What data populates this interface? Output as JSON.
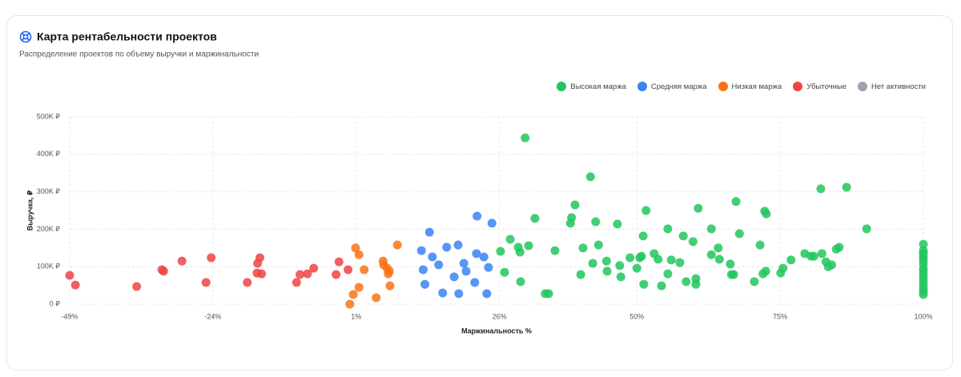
{
  "header": {
    "title": "Карта рентабельности проектов",
    "subtitle": "Распределение проектов по объему выручки и маржинальности"
  },
  "chart_data": {
    "type": "scatter",
    "x_label": "Маржинальность %",
    "y_label": "Выручка, ₽",
    "xlim": [
      -49,
      100
    ],
    "ylim": [
      0,
      500000
    ],
    "xticks": [
      {
        "value": -49,
        "label": "-49%"
      },
      {
        "value": -24,
        "label": "-24%"
      },
      {
        "value": 1,
        "label": "1%"
      },
      {
        "value": 26,
        "label": "26%"
      },
      {
        "value": 50,
        "label": "50%"
      },
      {
        "value": 75,
        "label": "75%"
      },
      {
        "value": 100,
        "label": "100%"
      }
    ],
    "yticks": [
      {
        "value": 0,
        "label": "0 ₽"
      },
      {
        "value": 100000,
        "label": "100K ₽"
      },
      {
        "value": 200000,
        "label": "200K ₽"
      },
      {
        "value": 300000,
        "label": "300K ₽"
      },
      {
        "value": 400000,
        "label": "400K ₽"
      },
      {
        "value": 500000,
        "label": "500K ₽"
      }
    ],
    "grid": true,
    "legend": "top-right",
    "series": [
      {
        "name": "Высокая маржа",
        "color": "#22c55e",
        "x": [
          26.2,
          26.9,
          27.9,
          29.3,
          29.6,
          29.7,
          30.5,
          31.1,
          32.2,
          34,
          34.6,
          35.7,
          38.4,
          38.6,
          39.2,
          40.2,
          40.6,
          41.9,
          42.3,
          42.8,
          43.3,
          44.7,
          44.8,
          46.6,
          47,
          47.2,
          48.8,
          50,
          50.5,
          50.8,
          51.1,
          51.2,
          51.6,
          53,
          53.7,
          54.3,
          55.4,
          55.4,
          56,
          57.5,
          58.1,
          58.6,
          59.8,
          60.3,
          60.3,
          60.7,
          63,
          63,
          64.2,
          64.4,
          66.3,
          66.5,
          66.9,
          67.3,
          67.9,
          70.5,
          71.5,
          72,
          72.3,
          72.6,
          72.5,
          75.1,
          75.5,
          76.9,
          79.3,
          80.4,
          80.9,
          82.3,
          82.1,
          83,
          83.4,
          84,
          84.8,
          85.3,
          86.6,
          90.1,
          100,
          100,
          100,
          100,
          100,
          100,
          100,
          100,
          100,
          100,
          100,
          100,
          100,
          100
        ],
        "values": [
          141000,
          85000,
          173000,
          152000,
          139000,
          60000,
          444000,
          156000,
          229000,
          28000,
          28000,
          143000,
          216000,
          231000,
          265000,
          79000,
          150000,
          340000,
          109000,
          220000,
          158000,
          115000,
          88000,
          214000,
          103000,
          73000,
          124000,
          96000,
          124000,
          128000,
          182000,
          53000,
          250000,
          135000,
          120000,
          49000,
          201000,
          81000,
          118000,
          111000,
          182000,
          60000,
          167000,
          68000,
          53000,
          256000,
          201000,
          132000,
          150000,
          120000,
          107000,
          79000,
          79000,
          274000,
          188000,
          60000,
          158000,
          81000,
          248000,
          241000,
          88000,
          83000,
          96000,
          118000,
          135000,
          128000,
          128000,
          135000,
          308000,
          113000,
          100000,
          105000,
          147000,
          152000,
          312000,
          201000,
          160000,
          143000,
          135000,
          126000,
          118000,
          107000,
          94000,
          85000,
          75000,
          64000,
          53000,
          43000,
          34000,
          26000
        ]
      },
      {
        "name": "Средняя маржа",
        "color": "#3b82f6",
        "x": [
          12.4,
          12.7,
          13,
          13.8,
          14.3,
          15.4,
          16.1,
          16.8,
          18.1,
          18.8,
          18.9,
          19.8,
          20.2,
          21.7,
          22,
          22.1,
          23.3,
          23.8,
          24.1,
          24.7
        ],
        "values": [
          143000,
          92000,
          53000,
          192000,
          126000,
          105000,
          30000,
          152000,
          73000,
          158000,
          28000,
          109000,
          88000,
          58000,
          135000,
          235000,
          126000,
          28000,
          98000,
          216000
        ]
      },
      {
        "name": "Низкая маржа",
        "color": "#f97316",
        "x": [
          -0.1,
          0.5,
          0.9,
          1.5,
          1.5,
          2.4,
          4.5,
          5.7,
          5.8,
          6.4,
          6.8,
          6.6,
          6.9,
          8.2
        ],
        "values": [
          0,
          26000,
          150000,
          132000,
          45000,
          92000,
          17000,
          115000,
          105000,
          96000,
          88000,
          81000,
          49000,
          158000
        ]
      },
      {
        "name": "Убыточные",
        "color": "#ef4444",
        "x": [
          -49,
          -48,
          -37.3,
          -32.9,
          -32.6,
          -29.4,
          -25.2,
          -24.3,
          -18,
          -16.3,
          -16.2,
          -15.8,
          -15.5,
          -9.4,
          -8.8,
          -7.5,
          -6.4,
          -2.5,
          -2,
          -0.4
        ],
        "values": [
          77000,
          51000,
          47000,
          92000,
          88000,
          115000,
          58000,
          124000,
          58000,
          83000,
          109000,
          124000,
          81000,
          58000,
          79000,
          81000,
          96000,
          79000,
          113000,
          92000
        ]
      },
      {
        "name": "Нет активности",
        "color": "#9ca3af",
        "x": [],
        "values": []
      }
    ]
  }
}
